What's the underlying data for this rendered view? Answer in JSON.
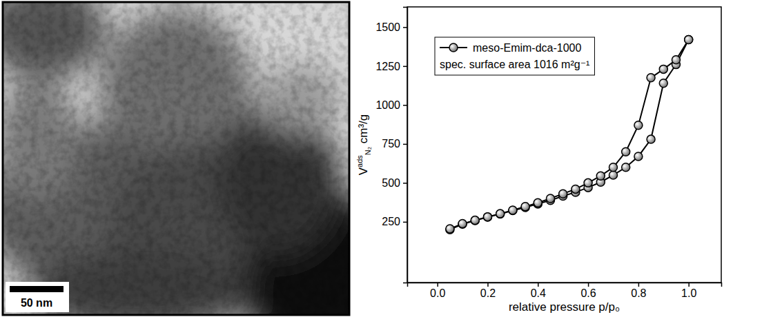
{
  "image": {
    "scale_bar": "50 nm"
  },
  "chart_data": {
    "type": "line",
    "x_label": "relative pressure p/p₀",
    "y_label": {
      "main": "V",
      "sup": "ads",
      "sub": "N₂",
      "unit": " cm³/g"
    },
    "xlim": [
      -0.12,
      1.13
    ],
    "ylim": [
      -140,
      1630
    ],
    "xticks": [
      {
        "value": 0,
        "label": "0.0"
      },
      0.2,
      0.4,
      0.6,
      0.8,
      {
        "value": 1,
        "label": "1.0"
      }
    ],
    "yticks": [
      250,
      500,
      750,
      1000,
      1250,
      1500
    ],
    "legend": "upper left",
    "annotations": [
      "spec. surface area 1016 m²g⁻¹"
    ],
    "marker": "circle",
    "color": "#000000",
    "series": [
      {
        "name": "meso-Emim-dca-1000",
        "color": "#000000",
        "x": [
          0.05,
          0.1,
          0.15,
          0.2,
          0.25,
          0.3,
          0.35,
          0.4,
          0.45,
          0.5,
          0.55,
          0.6,
          0.65,
          0.7,
          0.75,
          0.8,
          0.85,
          0.9,
          0.95,
          1.0
        ],
        "values": [
          200,
          235,
          258,
          280,
          300,
          322,
          342,
          365,
          388,
          415,
          440,
          470,
          505,
          550,
          600,
          670,
          780,
          1140,
          1260,
          1420
        ]
      },
      {
        "color": "#000000",
        "x": [
          1.0,
          0.95,
          0.9,
          0.85,
          0.8,
          0.75,
          0.7,
          0.65,
          0.6,
          0.55,
          0.5,
          0.45,
          0.4,
          0.35,
          0.3,
          0.25,
          0.2,
          0.15,
          0.1,
          0.05
        ],
        "values": [
          1420,
          1290,
          1230,
          1175,
          870,
          700,
          600,
          545,
          500,
          460,
          430,
          400,
          372,
          348,
          325,
          302,
          282,
          260,
          238,
          205
        ]
      }
    ]
  }
}
